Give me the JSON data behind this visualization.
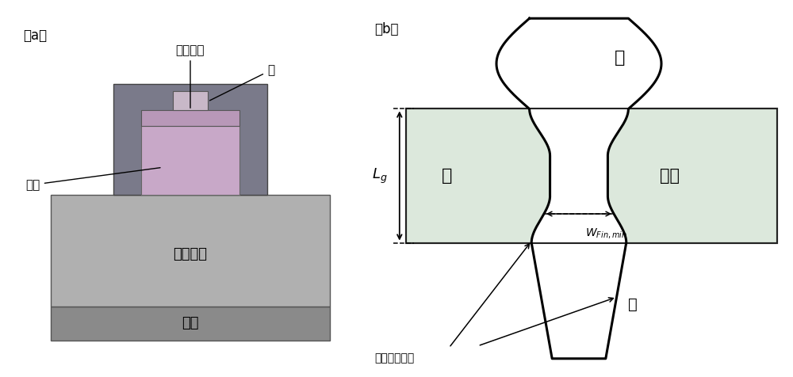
{
  "fig_width": 10.0,
  "fig_height": 4.76,
  "bg_color": "#ffffff",
  "panel_a": {
    "label": "（a）",
    "substrate_color": "#8a8a8a",
    "body_oxide_color": "#b0b0b0",
    "gate_stack_color": "#7a7a8a",
    "channel_color": "#c8a8c8",
    "gate_oxide_color": "#b898b8",
    "gate_metal_color": "#c8b8c8",
    "labels": {
      "gate_oxide": "栅氧化层",
      "gate": "栅",
      "channel": "沟道",
      "body_oxide": "体氧化层",
      "substrate": "衬底"
    }
  },
  "panel_b": {
    "label": "（b）",
    "gate_rect_color": "#dce8dc",
    "labels": {
      "drain": "漏",
      "channel": "沟道",
      "gate": "栅",
      "source": "源",
      "fer": "鳍边缘粗糙度"
    }
  }
}
